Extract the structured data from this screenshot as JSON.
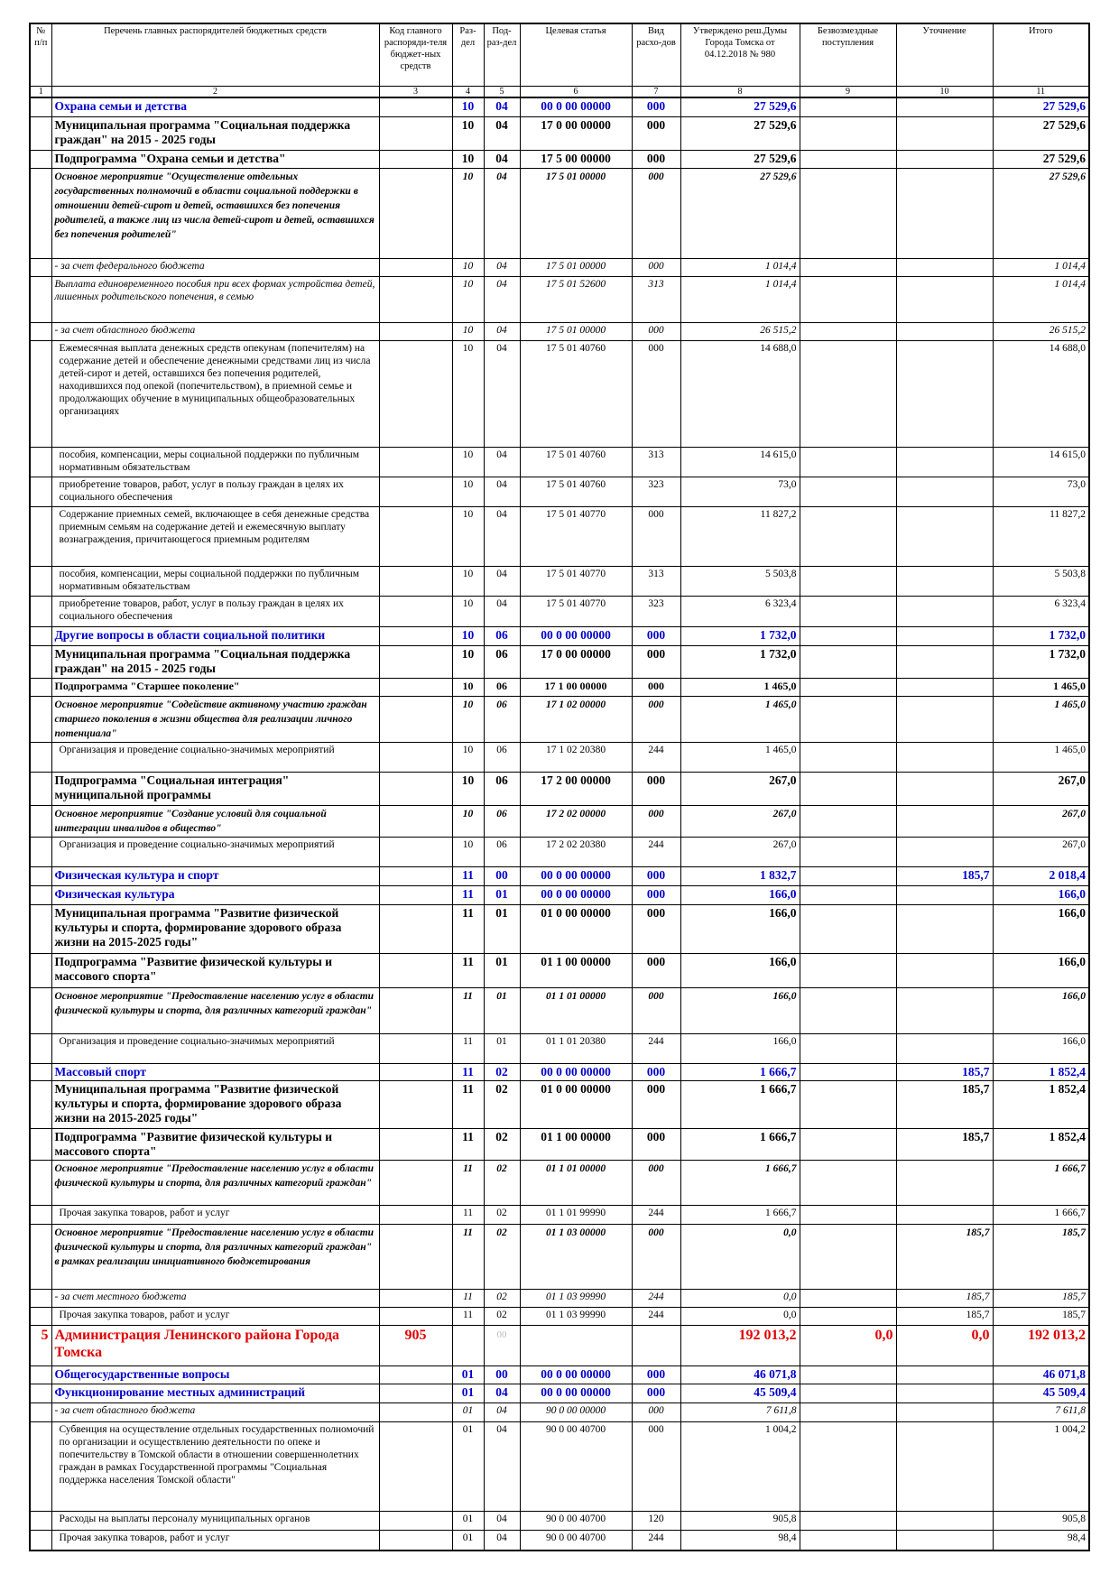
{
  "table": {
    "header": [
      "№ п/п",
      "Перечень главных распорядителей бюджетных средств",
      "Код главного распоряди-теля бюджет-ных средств",
      "Раз-дел",
      "Под-раз-дел",
      "Целевая статья",
      "Вид расхо-дов",
      "Утверждено реш.Думы Города Томска от 04.12.2018 № 980",
      "Безвозмездные поступления",
      "Уточнение",
      "Итого"
    ],
    "column_numbers": [
      "1",
      "2",
      "3",
      "4",
      "5",
      "6",
      "7",
      "8",
      "9",
      "10",
      "11"
    ],
    "rows": [
      [
        null,
        "Охрана семьи и детства",
        null,
        "10",
        "04",
        "00 0 00 00000",
        "000",
        "27 529,6",
        null,
        null,
        "27 529,6"
      ],
      [
        null,
        "Муниципальная программа \"Социальная поддержка граждан\" на 2015 - 2025 годы",
        null,
        "10",
        "04",
        "17 0 00 00000",
        "000",
        "27 529,6",
        null,
        null,
        "27 529,6"
      ],
      [
        null,
        "Подпрограмма \"Охрана семьи и детства\"",
        null,
        "10",
        "04",
        "17 5 00 00000",
        "000",
        "27 529,6",
        null,
        null,
        "27 529,6"
      ],
      [
        null,
        "Основное мероприятие \"Осуществление отдельных государственных полномочий в области социальной поддержки в отношении детей-сирот и детей, оставшихся без попечения родителей, а также лиц из числа детей-сирот и детей, оставшихся без попечения родителей\"",
        null,
        "10",
        "04",
        "17 5 01 00000",
        "000",
        "27 529,6",
        null,
        null,
        "27 529,6"
      ],
      [
        null,
        "- за счет федерального бюджета",
        null,
        "10",
        "04",
        "17 5 01 00000",
        "000",
        "1 014,4",
        null,
        null,
        "1 014,4"
      ],
      [
        null,
        "Выплата единовременного пособия при всех формах устройства детей, лишенных родительского попечения, в семью",
        null,
        "10",
        "04",
        "17 5 01 52600",
        "313",
        "1 014,4",
        null,
        null,
        "1 014,4"
      ],
      [
        null,
        "- за счет областного бюджета",
        null,
        "10",
        "04",
        "17 5 01 00000",
        "000",
        "26 515,2",
        null,
        null,
        "26 515,2"
      ],
      [
        null,
        "Ежемесячная выплата денежных средств опекунам (попечителям) на содержание детей и обеспечение денежными средствами лиц из числа детей-сирот и детей, оставшихся без попечения родителей, находившихся под опекой (попечительством), в приемной семье и продолжающих обучение в муниципальных общеобразовательных организациях",
        null,
        "10",
        "04",
        "17 5 01 40760",
        "000",
        "14 688,0",
        null,
        null,
        "14 688,0"
      ],
      [
        null,
        "пособия, компенсации, меры социальной поддержки по публичным нормативным обязательствам",
        null,
        "10",
        "04",
        "17 5 01 40760",
        "313",
        "14 615,0",
        null,
        null,
        "14 615,0"
      ],
      [
        null,
        "приобретение товаров, работ, услуг в пользу граждан в целях их социального обеспечения",
        null,
        "10",
        "04",
        "17 5 01 40760",
        "323",
        "73,0",
        null,
        null,
        "73,0"
      ],
      [
        null,
        "Содержание приемных семей, включающее в себя денежные средства приемным семьям на содержание детей и ежемесячную выплату вознаграждения, причитающегося приемным родителям",
        null,
        "10",
        "04",
        "17 5 01 40770",
        "000",
        "11 827,2",
        null,
        null,
        "11 827,2"
      ],
      [
        null,
        "пособия, компенсации, меры социальной поддержки по публичным нормативным обязательствам",
        null,
        "10",
        "04",
        "17 5 01 40770",
        "313",
        "5 503,8",
        null,
        null,
        "5 503,8"
      ],
      [
        null,
        "приобретение товаров, работ, услуг в пользу граждан в целях их социального обеспечения",
        null,
        "10",
        "04",
        "17 5 01 40770",
        "323",
        "6 323,4",
        null,
        null,
        "6 323,4"
      ],
      [
        null,
        "Другие вопросы в области социальной политики",
        null,
        "10",
        "06",
        "00 0 00 00000",
        "000",
        "1 732,0",
        null,
        null,
        "1 732,0"
      ],
      [
        null,
        "Муниципальная программа \"Социальная поддержка граждан\" на 2015 - 2025 годы",
        null,
        "10",
        "06",
        "17 0 00 00000",
        "000",
        "1 732,0",
        null,
        null,
        "1 732,0"
      ],
      [
        null,
        "Подпрограмма \"Старшее поколение\"",
        null,
        "10",
        "06",
        "17 1 00 00000",
        "000",
        "1 465,0",
        null,
        null,
        "1 465,0"
      ],
      [
        null,
        "Основное мероприятие \"Содействие активному участию граждан старшего поколения в жизни общества для реализации личного потенциала\"",
        null,
        "10",
        "06",
        "17 1 02 00000",
        "000",
        "1 465,0",
        null,
        null,
        "1 465,0"
      ],
      [
        null,
        "Организация и проведение социально-значимых мероприятий",
        null,
        "10",
        "06",
        "17 1 02 20380",
        "244",
        "1 465,0",
        null,
        null,
        "1 465,0"
      ],
      [
        null,
        "Подпрограмма \"Социальная интеграция\" муниципальной программы",
        null,
        "10",
        "06",
        "17 2 00 00000",
        "000",
        "267,0",
        null,
        null,
        "267,0"
      ],
      [
        null,
        "Основное мероприятие \"Создание условий для социальной интеграции инвалидов в общество\"",
        null,
        "10",
        "06",
        "17 2 02 00000",
        "000",
        "267,0",
        null,
        null,
        "267,0"
      ],
      [
        null,
        "Организация и проведение социально-значимых мероприятий",
        null,
        "10",
        "06",
        "17 2 02 20380",
        "244",
        "267,0",
        null,
        null,
        "267,0"
      ],
      [
        null,
        "Физическая культура и спорт",
        null,
        "11",
        "00",
        "00 0 00 00000",
        "000",
        "1 832,7",
        null,
        "185,7",
        "2 018,4"
      ],
      [
        null,
        "Физическая культура",
        null,
        "11",
        "01",
        "00 0 00 00000",
        "000",
        "166,0",
        null,
        null,
        "166,0"
      ],
      [
        null,
        "Муниципальная программа \"Развитие физической культуры и спорта, формирование здорового образа жизни на 2015-2025 годы\"",
        null,
        "11",
        "01",
        "01 0 00 00000",
        "000",
        "166,0",
        null,
        null,
        "166,0"
      ],
      [
        null,
        "Подпрограмма \"Развитие физической культуры и массового спорта\"",
        null,
        "11",
        "01",
        "01 1 00 00000",
        "000",
        "166,0",
        null,
        null,
        "166,0"
      ],
      [
        null,
        "Основное мероприятие \"Предоставление населению услуг в области физической культуры и спорта, для различных категорий граждан\"",
        null,
        "11",
        "01",
        "01 1 01 00000",
        "000",
        "166,0",
        null,
        null,
        "166,0"
      ],
      [
        null,
        "Организация и проведение социально-значимых мероприятий",
        null,
        "11",
        "01",
        "01 1 01 20380",
        "244",
        "166,0",
        null,
        null,
        "166,0"
      ],
      [
        null,
        "Массовый спорт",
        null,
        "11",
        "02",
        "00 0 00 00000",
        "000",
        "1 666,7",
        null,
        "185,7",
        "1 852,4"
      ],
      [
        null,
        "Муниципальная программа \"Развитие физической культуры и спорта, формирование здорового образа жизни на 2015-2025 годы\"",
        null,
        "11",
        "02",
        "01 0 00 00000",
        "000",
        "1 666,7",
        null,
        "185,7",
        "1 852,4"
      ],
      [
        null,
        "Подпрограмма \"Развитие физической культуры и массового спорта\"",
        null,
        "11",
        "02",
        "01 1 00 00000",
        "000",
        "1 666,7",
        null,
        "185,7",
        "1 852,4"
      ],
      [
        null,
        "Основное мероприятие \"Предоставление населению услуг в области физической культуры и спорта, для различных категорий граждан\"",
        null,
        "11",
        "02",
        "01 1 01 00000",
        "000",
        "1 666,7",
        null,
        null,
        "1 666,7"
      ],
      [
        null,
        "Прочая закупка товаров, работ и услуг",
        null,
        "11",
        "02",
        "01 1 01 99990",
        "244",
        "1 666,7",
        null,
        null,
        "1 666,7"
      ],
      [
        null,
        "Основное мероприятие \"Предоставление населению услуг в области физической культуры и спорта, для различных категорий граждан\" в рамках реализации инициативного бюджетирования",
        null,
        "11",
        "02",
        "01 1 03 00000",
        "000",
        "0,0",
        null,
        "185,7",
        "185,7"
      ],
      [
        null,
        "- за счет местного бюджета",
        null,
        "11",
        "02",
        "01 1 03 99990",
        "244",
        "0,0",
        null,
        "185,7",
        "185,7"
      ],
      [
        null,
        "Прочая закупка товаров, работ и услуг",
        null,
        "11",
        "02",
        "01 1 03 99990",
        "244",
        "0,0",
        null,
        "185,7",
        "185,7"
      ],
      [
        "5",
        "Администрация Ленинского района Города Томска",
        "905",
        null,
        "00",
        null,
        null,
        "192 013,2",
        "0,0",
        "0,0",
        "192 013,2"
      ],
      [
        null,
        "Общегосударственные вопросы",
        null,
        "01",
        "00",
        "00 0 00 00000",
        "000",
        "46 071,8",
        null,
        null,
        "46 071,8"
      ],
      [
        null,
        "Функционирование местных администраций",
        null,
        "01",
        "04",
        "00 0 00 00000",
        "000",
        "45 509,4",
        null,
        null,
        "45 509,4"
      ],
      [
        null,
        "- за счет областного бюджета",
        null,
        "01",
        "04",
        "90 0 00 00000",
        "000",
        "7 611,8",
        null,
        null,
        "7 611,8"
      ],
      [
        null,
        "Субвенция на осуществление отдельных государственных полномочий по организации и осуществлению деятельности по опеке и попечительству в Томской области в отношении совершеннолетних граждан в рамках Государственной программы \"Социальная поддержка населения Томской области\"",
        null,
        "01",
        "04",
        "90 0 00 40700",
        "000",
        "1 004,2",
        null,
        null,
        "1 004,2"
      ],
      [
        null,
        "Расходы на выплаты персоналу муниципальных органов",
        null,
        "01",
        "04",
        "90 0 00 40700",
        "120",
        "905,8",
        null,
        null,
        "905,8"
      ],
      [
        null,
        "Прочая закупка товаров, работ и услуг",
        null,
        "01",
        "04",
        "90 0 00 40700",
        "244",
        "98,4",
        null,
        null,
        "98,4"
      ]
    ]
  }
}
